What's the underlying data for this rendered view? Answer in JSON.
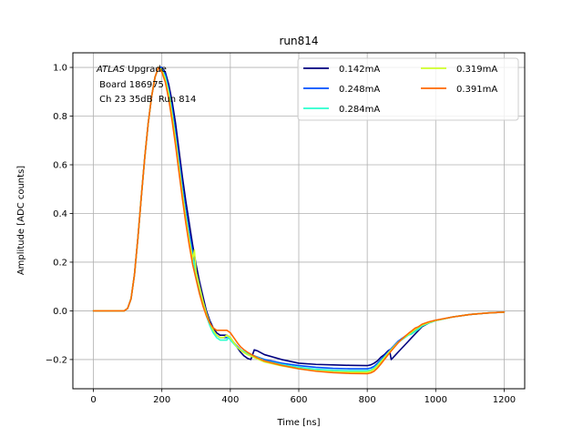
{
  "chart_data": {
    "type": "line",
    "title": "run814",
    "xlabel": "Time [ns]",
    "ylabel": "Amplitude [ADC counts]",
    "xlim": [
      -60,
      1260
    ],
    "ylim": [
      -0.32,
      1.06
    ],
    "xticks": [
      0,
      200,
      400,
      600,
      800,
      1000,
      1200
    ],
    "yticks": [
      -0.2,
      0.0,
      0.2,
      0.4,
      0.6,
      0.8,
      1.0
    ],
    "xtick_labels": [
      "0",
      "200",
      "400",
      "600",
      "800",
      "1000",
      "1200"
    ],
    "ytick_labels": [
      "−0.2",
      "0.0",
      "0.2",
      "0.4",
      "0.6",
      "0.8",
      "1.0"
    ],
    "grid": true,
    "legend": {
      "placement": "top-right",
      "columns": 2
    },
    "annotation": {
      "line1_italic": "ATLAS",
      "line1_rest": " Upgrade",
      "line2": " Board 186975",
      "line3": " Ch 23 35dB  Run 814"
    },
    "series": [
      {
        "name": "0.142mA",
        "color": "#00007f",
        "x": [
          0,
          90,
          100,
          110,
          120,
          130,
          140,
          150,
          160,
          170,
          180,
          190,
          200,
          210,
          220,
          230,
          240,
          250,
          260,
          270,
          280,
          290,
          300,
          310,
          320,
          330,
          340,
          350,
          360,
          370,
          380,
          390,
          400,
          410,
          420,
          430,
          440,
          450,
          460,
          465,
          470,
          480,
          500,
          550,
          600,
          650,
          700,
          750,
          800,
          810,
          820,
          830,
          840,
          850,
          860,
          865,
          870,
          880,
          890,
          900,
          910,
          920,
          930,
          940,
          950,
          960,
          980,
          1000,
          1050,
          1100,
          1150,
          1200
        ],
        "y": [
          0,
          0,
          0.01,
          0.05,
          0.15,
          0.3,
          0.47,
          0.63,
          0.77,
          0.88,
          0.96,
          1.0,
          1.0,
          0.98,
          0.93,
          0.86,
          0.77,
          0.66,
          0.55,
          0.45,
          0.36,
          0.27,
          0.19,
          0.12,
          0.06,
          0.0,
          -0.04,
          -0.07,
          -0.09,
          -0.1,
          -0.1,
          -0.1,
          -0.11,
          -0.13,
          -0.15,
          -0.17,
          -0.185,
          -0.195,
          -0.2,
          -0.18,
          -0.16,
          -0.165,
          -0.18,
          -0.2,
          -0.215,
          -0.22,
          -0.222,
          -0.224,
          -0.225,
          -0.222,
          -0.215,
          -0.205,
          -0.19,
          -0.18,
          -0.165,
          -0.16,
          -0.2,
          -0.185,
          -0.17,
          -0.155,
          -0.14,
          -0.125,
          -0.11,
          -0.095,
          -0.08,
          -0.065,
          -0.05,
          -0.04,
          -0.025,
          -0.015,
          -0.009,
          -0.005
        ]
      },
      {
        "name": "0.248mA",
        "color": "#0050ff",
        "x": [
          0,
          90,
          100,
          110,
          120,
          130,
          140,
          150,
          160,
          170,
          180,
          190,
          200,
          210,
          220,
          230,
          240,
          250,
          260,
          270,
          280,
          290,
          300,
          310,
          320,
          330,
          340,
          350,
          360,
          370,
          380,
          390,
          400,
          410,
          420,
          430,
          440,
          450,
          460,
          470,
          480,
          490,
          500,
          550,
          600,
          650,
          700,
          750,
          800,
          810,
          820,
          830,
          840,
          850,
          860,
          870,
          880,
          890,
          900,
          910,
          920,
          930,
          940,
          950,
          960,
          980,
          1000,
          1050,
          1100,
          1150,
          1200
        ],
        "y": [
          0,
          0,
          0.01,
          0.05,
          0.15,
          0.3,
          0.47,
          0.63,
          0.77,
          0.88,
          0.96,
          1.0,
          1.0,
          0.97,
          0.91,
          0.83,
          0.73,
          0.62,
          0.51,
          0.41,
          0.32,
          0.24,
          0.16,
          0.1,
          0.04,
          -0.01,
          -0.05,
          -0.08,
          -0.1,
          -0.11,
          -0.11,
          -0.11,
          -0.115,
          -0.13,
          -0.145,
          -0.16,
          -0.17,
          -0.175,
          -0.18,
          -0.185,
          -0.19,
          -0.195,
          -0.2,
          -0.215,
          -0.225,
          -0.232,
          -0.236,
          -0.238,
          -0.238,
          -0.235,
          -0.228,
          -0.215,
          -0.2,
          -0.185,
          -0.17,
          -0.155,
          -0.14,
          -0.125,
          -0.115,
          -0.105,
          -0.098,
          -0.09,
          -0.08,
          -0.07,
          -0.06,
          -0.05,
          -0.04,
          -0.025,
          -0.015,
          -0.009,
          -0.005
        ]
      },
      {
        "name": "0.284mA",
        "color": "#29ffce",
        "x": [
          0,
          90,
          100,
          110,
          120,
          130,
          140,
          150,
          160,
          170,
          180,
          190,
          200,
          210,
          220,
          230,
          240,
          250,
          260,
          270,
          280,
          290,
          300,
          310,
          320,
          330,
          340,
          350,
          360,
          370,
          380,
          390,
          395,
          400,
          410,
          420,
          430,
          440,
          450,
          460,
          470,
          480,
          490,
          500,
          550,
          600,
          650,
          700,
          750,
          800,
          810,
          820,
          830,
          840,
          850,
          860,
          870,
          880,
          890,
          900,
          910,
          920,
          930,
          940,
          950,
          960,
          980,
          1000,
          1050,
          1100,
          1150,
          1200
        ],
        "y": [
          0,
          0,
          0.01,
          0.05,
          0.15,
          0.3,
          0.47,
          0.63,
          0.77,
          0.88,
          0.96,
          1.0,
          0.99,
          0.96,
          0.9,
          0.81,
          0.71,
          0.6,
          0.49,
          0.39,
          0.3,
          0.22,
          0.15,
          0.09,
          0.03,
          -0.02,
          -0.06,
          -0.09,
          -0.11,
          -0.12,
          -0.12,
          -0.12,
          -0.105,
          -0.12,
          -0.135,
          -0.15,
          -0.16,
          -0.168,
          -0.175,
          -0.18,
          -0.186,
          -0.192,
          -0.198,
          -0.205,
          -0.22,
          -0.232,
          -0.24,
          -0.244,
          -0.246,
          -0.246,
          -0.243,
          -0.235,
          -0.222,
          -0.205,
          -0.19,
          -0.175,
          -0.16,
          -0.145,
          -0.13,
          -0.12,
          -0.11,
          -0.1,
          -0.095,
          -0.085,
          -0.075,
          -0.062,
          -0.05,
          -0.04,
          -0.025,
          -0.015,
          -0.009,
          -0.005
        ]
      },
      {
        "name": "0.319mA",
        "color": "#ceff29",
        "x": [
          0,
          90,
          100,
          110,
          120,
          130,
          140,
          150,
          160,
          170,
          180,
          190,
          200,
          210,
          220,
          230,
          240,
          250,
          260,
          270,
          280,
          290,
          295,
          300,
          310,
          320,
          330,
          340,
          350,
          360,
          370,
          380,
          390,
          400,
          410,
          420,
          430,
          440,
          450,
          460,
          470,
          480,
          490,
          500,
          550,
          600,
          650,
          700,
          750,
          800,
          810,
          820,
          830,
          840,
          850,
          860,
          870,
          880,
          890,
          900,
          910,
          920,
          930,
          940,
          950,
          960,
          980,
          1000,
          1050,
          1100,
          1150,
          1200
        ],
        "y": [
          0,
          0,
          0.01,
          0.05,
          0.15,
          0.3,
          0.47,
          0.63,
          0.77,
          0.88,
          0.96,
          1.0,
          0.99,
          0.95,
          0.89,
          0.8,
          0.7,
          0.59,
          0.48,
          0.38,
          0.29,
          0.21,
          0.25,
          0.16,
          0.1,
          0.04,
          -0.01,
          -0.05,
          -0.08,
          -0.1,
          -0.11,
          -0.11,
          -0.1,
          -0.11,
          -0.13,
          -0.148,
          -0.162,
          -0.172,
          -0.18,
          -0.186,
          -0.192,
          -0.198,
          -0.204,
          -0.21,
          -0.226,
          -0.238,
          -0.246,
          -0.25,
          -0.252,
          -0.252,
          -0.248,
          -0.24,
          -0.226,
          -0.21,
          -0.193,
          -0.176,
          -0.16,
          -0.144,
          -0.13,
          -0.118,
          -0.107,
          -0.097,
          -0.087,
          -0.077,
          -0.067,
          -0.058,
          -0.048,
          -0.04,
          -0.025,
          -0.015,
          -0.009,
          -0.005
        ]
      },
      {
        "name": "0.391mA",
        "color": "#ff6800",
        "x": [
          0,
          90,
          100,
          110,
          120,
          130,
          140,
          150,
          160,
          170,
          180,
          190,
          200,
          210,
          220,
          230,
          240,
          250,
          260,
          270,
          280,
          290,
          300,
          310,
          320,
          330,
          340,
          350,
          360,
          370,
          380,
          390,
          400,
          410,
          420,
          430,
          440,
          450,
          460,
          470,
          480,
          490,
          500,
          550,
          600,
          650,
          700,
          750,
          800,
          810,
          820,
          830,
          840,
          850,
          860,
          870,
          880,
          890,
          900,
          910,
          920,
          930,
          940,
          950,
          960,
          980,
          1000,
          1050,
          1100,
          1150,
          1200
        ],
        "y": [
          0,
          0,
          0.01,
          0.05,
          0.15,
          0.3,
          0.47,
          0.63,
          0.77,
          0.88,
          0.96,
          1.0,
          0.98,
          0.94,
          0.87,
          0.78,
          0.68,
          0.57,
          0.46,
          0.36,
          0.27,
          0.19,
          0.13,
          0.07,
          0.02,
          -0.02,
          -0.05,
          -0.07,
          -0.08,
          -0.08,
          -0.08,
          -0.08,
          -0.09,
          -0.11,
          -0.13,
          -0.148,
          -0.16,
          -0.17,
          -0.178,
          -0.186,
          -0.194,
          -0.2,
          -0.206,
          -0.224,
          -0.238,
          -0.248,
          -0.254,
          -0.257,
          -0.258,
          -0.255,
          -0.248,
          -0.235,
          -0.218,
          -0.2,
          -0.182,
          -0.165,
          -0.148,
          -0.132,
          -0.118,
          -0.105,
          -0.093,
          -0.082,
          -0.071,
          -0.065,
          -0.055,
          -0.045,
          -0.038,
          -0.025,
          -0.015,
          -0.009,
          -0.005
        ]
      }
    ]
  }
}
